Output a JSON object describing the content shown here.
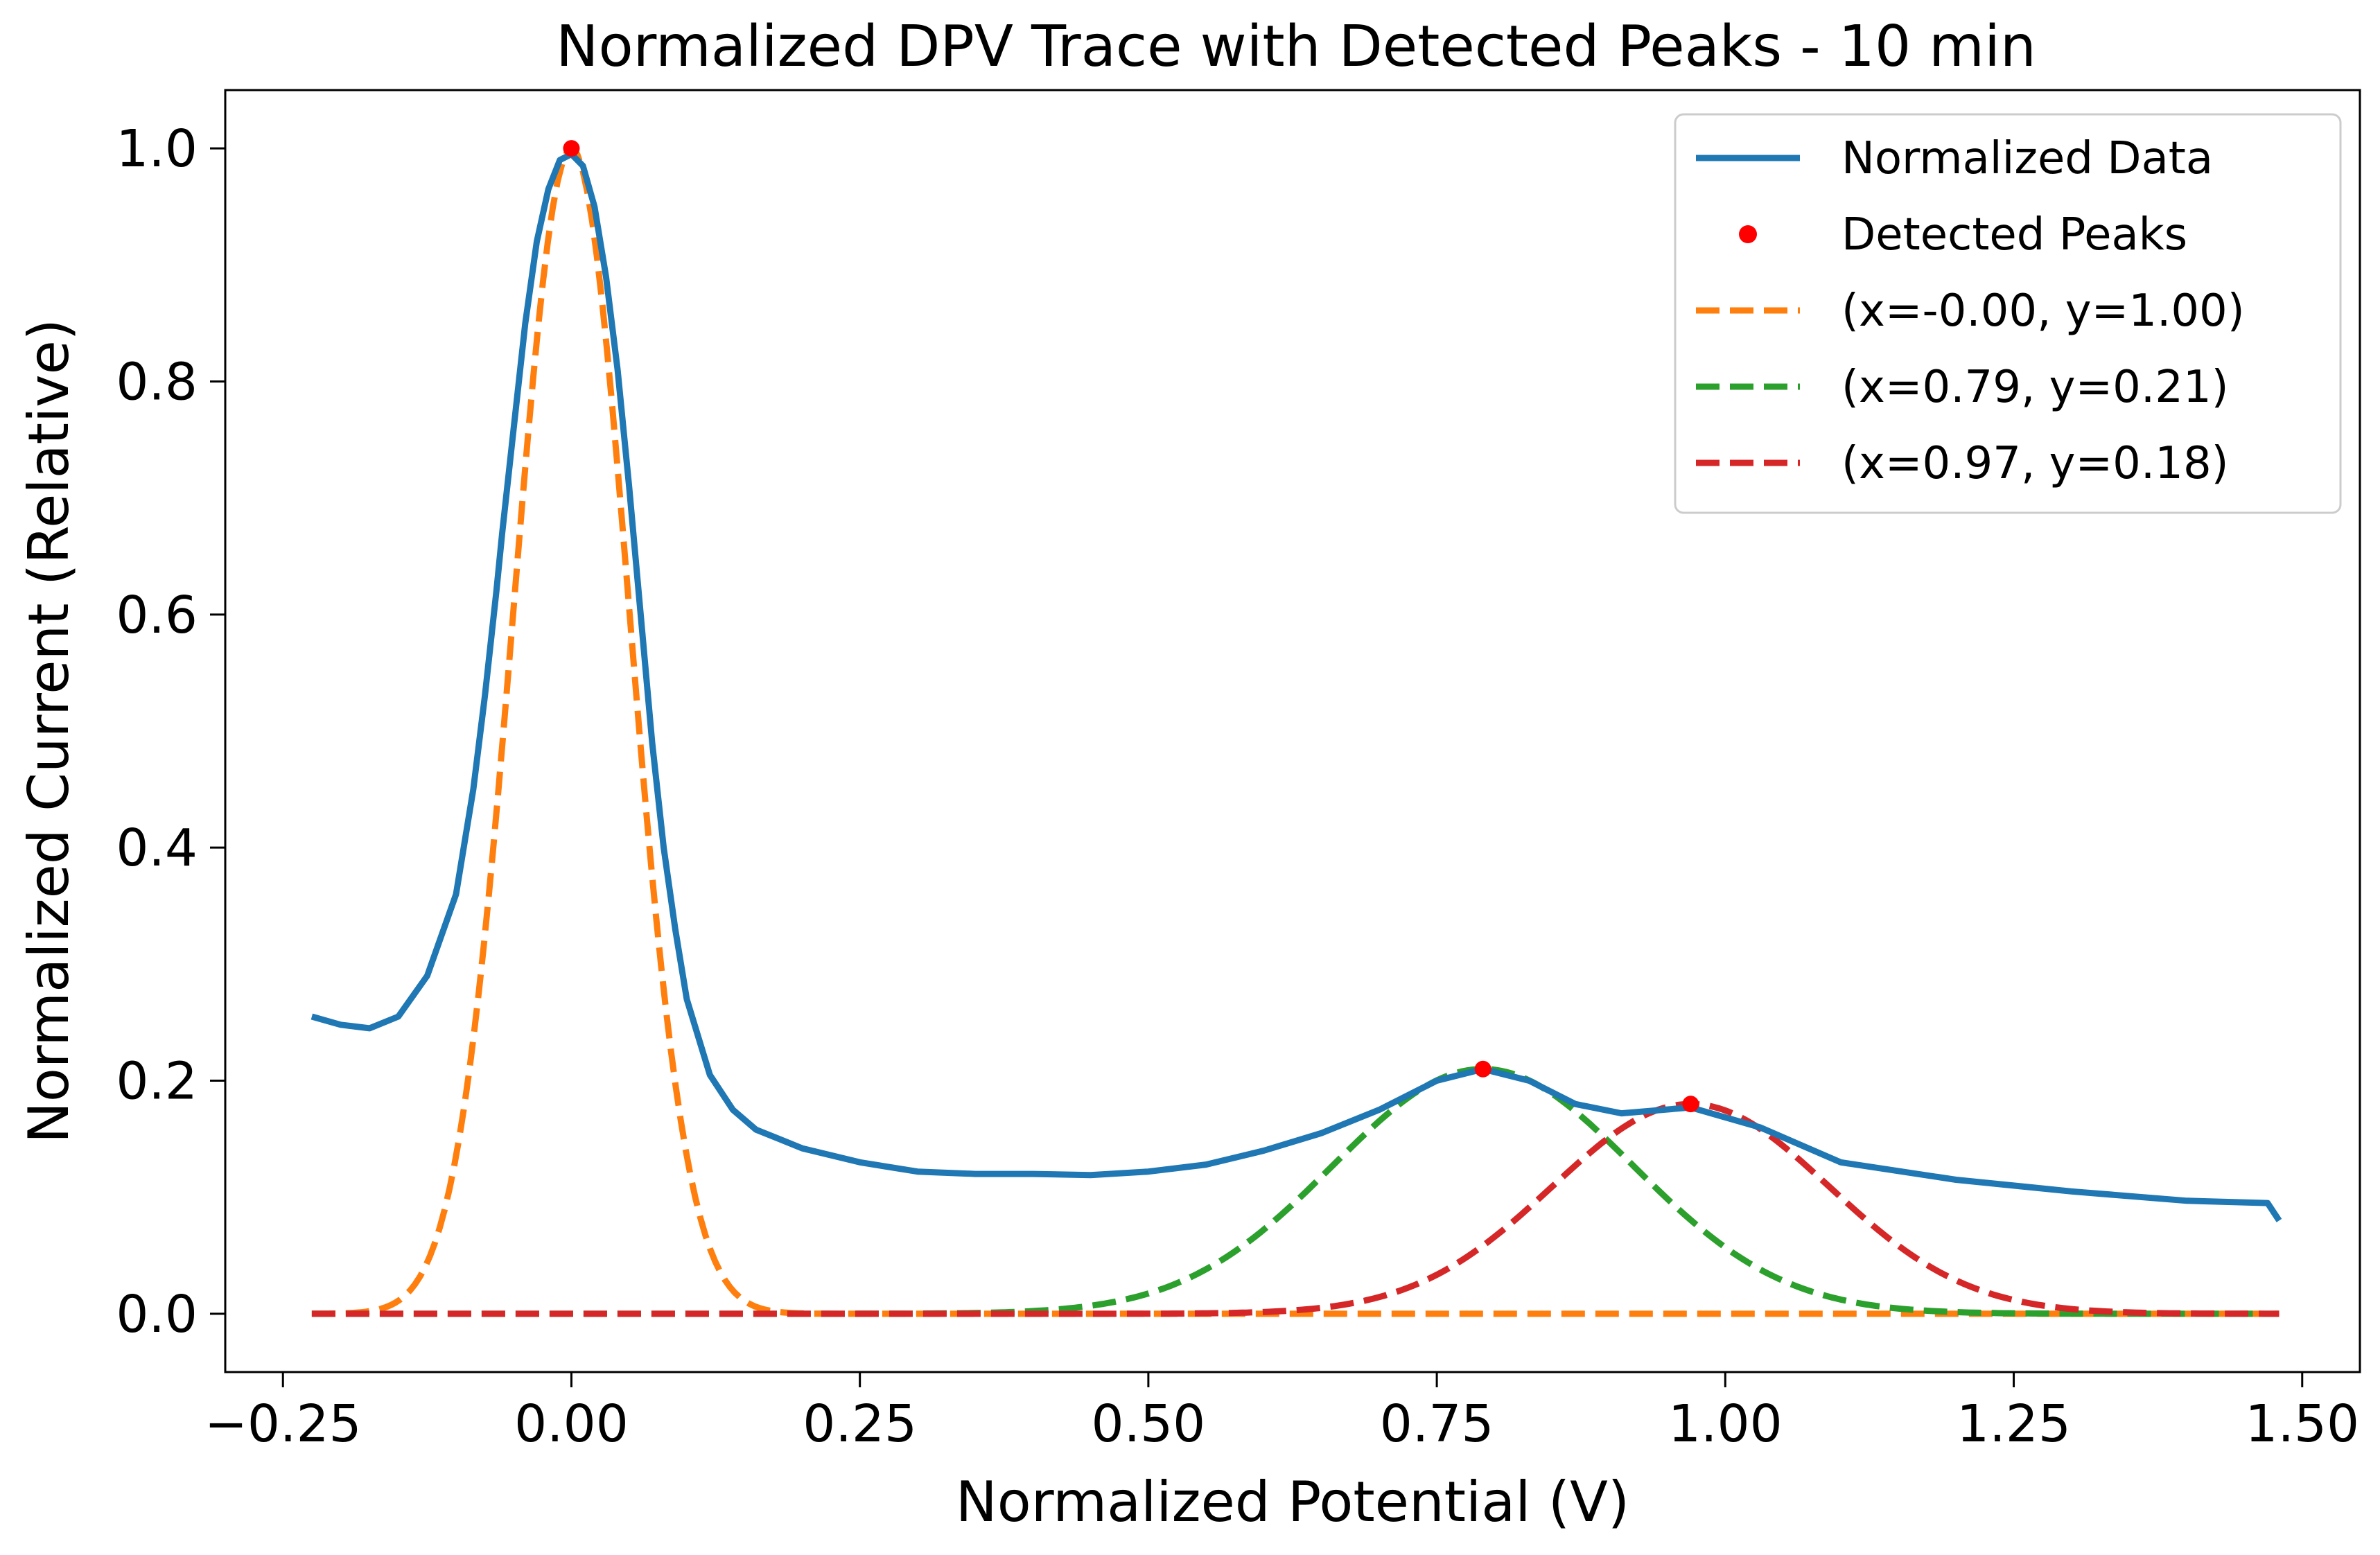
{
  "chart_data": {
    "type": "line",
    "title": "Normalized DPV Trace with Detected Peaks - 10 min",
    "xlabel": "Normalized Potential (V)",
    "ylabel": "Normalized Current (Relative)",
    "xlim": [
      -0.3,
      1.55
    ],
    "ylim": [
      -0.05,
      1.05
    ],
    "xticks": [
      -0.25,
      0.0,
      0.25,
      0.5,
      0.75,
      1.0,
      1.25,
      1.5
    ],
    "xtick_labels": [
      "−0.25",
      "0.00",
      "0.25",
      "0.50",
      "0.75",
      "1.00",
      "1.25",
      "1.50"
    ],
    "yticks": [
      0.0,
      0.2,
      0.4,
      0.6,
      0.8,
      1.0
    ],
    "ytick_labels": [
      "0.0",
      "0.2",
      "0.4",
      "0.6",
      "0.8",
      "1.0"
    ],
    "grid": false,
    "legend_position": "top-right",
    "series": [
      {
        "name": "Normalized Data",
        "kind": "line",
        "color": "#1f77b4",
        "x": [
          -0.225,
          -0.2,
          -0.175,
          -0.15,
          -0.125,
          -0.1,
          -0.085,
          -0.075,
          -0.065,
          -0.06,
          -0.05,
          -0.04,
          -0.03,
          -0.02,
          -0.01,
          0.0,
          0.01,
          0.02,
          0.03,
          0.04,
          0.05,
          0.06,
          0.07,
          0.08,
          0.09,
          0.1,
          0.12,
          0.14,
          0.16,
          0.18,
          0.2,
          0.25,
          0.3,
          0.35,
          0.4,
          0.45,
          0.5,
          0.55,
          0.6,
          0.65,
          0.7,
          0.75,
          0.79,
          0.83,
          0.87,
          0.91,
          0.97,
          1.03,
          1.1,
          1.2,
          1.3,
          1.4,
          1.47,
          1.48
        ],
        "y": [
          0.255,
          0.248,
          0.245,
          0.255,
          0.29,
          0.36,
          0.45,
          0.53,
          0.62,
          0.67,
          0.76,
          0.85,
          0.92,
          0.965,
          0.99,
          0.995,
          0.985,
          0.95,
          0.89,
          0.81,
          0.71,
          0.6,
          0.49,
          0.4,
          0.33,
          0.27,
          0.205,
          0.175,
          0.158,
          0.15,
          0.142,
          0.13,
          0.122,
          0.12,
          0.12,
          0.119,
          0.122,
          0.128,
          0.14,
          0.155,
          0.175,
          0.2,
          0.21,
          0.2,
          0.18,
          0.172,
          0.177,
          0.16,
          0.13,
          0.115,
          0.105,
          0.097,
          0.095,
          0.08
        ]
      },
      {
        "name": "Detected Peaks",
        "kind": "scatter",
        "color": "#ff0000",
        "x": [
          0.0,
          0.79,
          0.97
        ],
        "y": [
          1.0,
          0.21,
          0.18
        ]
      },
      {
        "name": "(x=-0.00, y=1.00)",
        "kind": "gaussian",
        "color": "#ff7f0e",
        "center": 0.0,
        "amplitude": 1.0,
        "sigma": 0.05,
        "x_range": [
          -0.225,
          1.48
        ]
      },
      {
        "name": "(x=0.79, y=0.21)",
        "kind": "gaussian",
        "color": "#2ca02c",
        "center": 0.79,
        "amplitude": 0.21,
        "sigma": 0.13,
        "x_range": [
          -0.225,
          1.48
        ]
      },
      {
        "name": "(x=0.97, y=0.18)",
        "kind": "gaussian",
        "color": "#d62728",
        "center": 0.97,
        "amplitude": 0.18,
        "sigma": 0.12,
        "x_range": [
          -0.225,
          1.48
        ]
      }
    ]
  }
}
